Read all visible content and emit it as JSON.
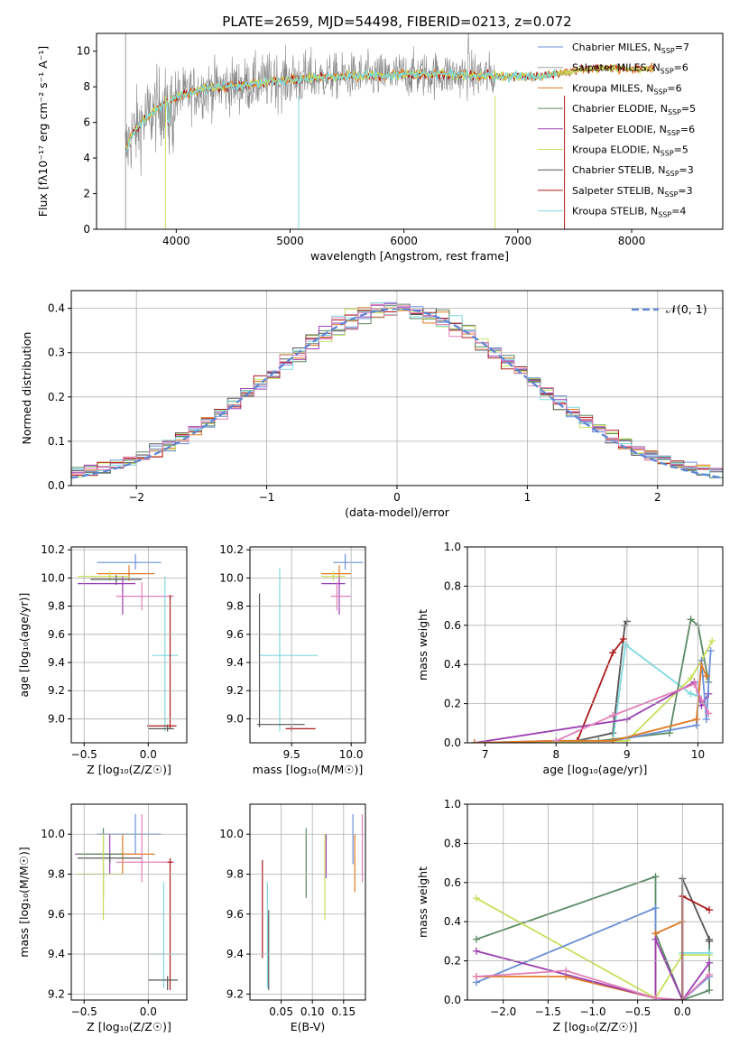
{
  "title": "PLATE=2659, MJD=54498, FIBERID=0213, z=0.072",
  "colors": {
    "chabrier_miles": "#6a8fd8",
    "salpeter_miles": "#a0a0a0",
    "kroupa_miles": "#e07b24",
    "chabrier_elodie": "#5a8a64",
    "salpeter_elodie": "#9b3fb0",
    "kroupa_elodie": "#c8e05a",
    "chabrier_stelib": "#555555",
    "salpeter_stelib": "#aa1a1a",
    "kroupa_stelib": "#7fd9df",
    "pink": "#e27fb9",
    "gauss": "#5b86d6"
  },
  "chart_data": [
    {
      "type": "line",
      "id": "spectrum",
      "xlabel": "wavelength [Angstrom, rest frame]",
      "ylabel": "Flux [fλ10⁻¹⁷ erg cm⁻² s⁻¹ A⁻¹]",
      "xlim": [
        3300,
        8800
      ],
      "ylim": [
        0,
        11
      ],
      "xticks": [
        "4000",
        "5000",
        "6000",
        "7000",
        "8000"
      ],
      "yticks": [
        "0",
        "2",
        "4",
        "6",
        "8",
        "10"
      ],
      "legend_position": "top-right",
      "legend": [
        {
          "label": "Chabrier MILES, N",
          "sub": "SSP",
          "tail": "=7"
        },
        {
          "label": "Salpeter MILES, N",
          "sub": "SSP",
          "tail": "=6"
        },
        {
          "label": "Kroupa MILES, N",
          "sub": "SSP",
          "tail": "=6"
        },
        {
          "label": "Chabrier ELODIE, N",
          "sub": "SSP",
          "tail": "=5"
        },
        {
          "label": "Salpeter ELODIE, N",
          "sub": "SSP",
          "tail": "=6"
        },
        {
          "label": "Kroupa ELODIE, N",
          "sub": "SSP",
          "tail": "=5"
        },
        {
          "label": "Chabrier STELIB, N",
          "sub": "SSP",
          "tail": "=3"
        },
        {
          "label": "Salpeter STELIB, N",
          "sub": "SSP",
          "tail": "=3"
        },
        {
          "label": "Kroupa STELIB, N",
          "sub": "SSP",
          "tail": "=4"
        }
      ],
      "continuum": {
        "x": [
          3550,
          3600,
          3700,
          3800,
          3900,
          4000,
          4200,
          4400,
          4600,
          4800,
          5000,
          5200,
          5500,
          5800,
          6000,
          6300,
          6600,
          6800,
          7000,
          7200,
          7400,
          7600,
          7800,
          8000,
          8200
        ],
        "y": [
          4.3,
          5.2,
          6.0,
          6.6,
          7.1,
          7.4,
          7.8,
          8.0,
          8.1,
          8.3,
          8.4,
          8.5,
          8.6,
          8.6,
          8.7,
          8.7,
          8.65,
          8.6,
          8.6,
          8.55,
          8.8,
          9.0,
          9.1,
          9.0,
          9.0
        ]
      }
    },
    {
      "type": "bar",
      "id": "residual-histogram",
      "xlabel": "(data-model)/error",
      "ylabel": "Normed distribution",
      "xlim": [
        -2.5,
        2.5
      ],
      "ylim": [
        0,
        0.44
      ],
      "xticks": [
        "−2",
        "−1",
        "0",
        "1",
        "2"
      ],
      "yticks": [
        "0.0",
        "0.1",
        "0.2",
        "0.3",
        "0.4"
      ],
      "legend_position": "top-right",
      "gauss_label": "𝒩(0, 1)",
      "bin_width": 0.1
    },
    {
      "type": "scatter",
      "id": "age-vs-Z",
      "xlabel": "Z [log₁₀(Z/Z☉)]",
      "ylabel": "age  [log₁₀(age/yr)]",
      "xlim": [
        -0.6,
        0.3
      ],
      "ylim": [
        8.83,
        10.22
      ],
      "xticks": [
        "−0.5",
        "0.0"
      ],
      "yticks": [
        "9.0",
        "9.2",
        "9.4",
        "9.6",
        "9.8",
        "10.0",
        "10.2"
      ],
      "points": [
        {
          "c": "chabrier_miles",
          "x": -0.1,
          "xe": [
            0.3,
            0.2
          ],
          "y": 10.11,
          "ye": [
            0.05,
            0.06
          ]
        },
        {
          "c": "kroupa_miles",
          "x": -0.15,
          "xe": [
            0.25,
            0.2
          ],
          "y": 10.03,
          "ye": [
            0.05,
            0.06
          ]
        },
        {
          "c": "kroupa_elodie",
          "x": -0.3,
          "xe": [
            0.25,
            0.15
          ],
          "y": 10.01,
          "ye": [
            0.03,
            0.04
          ]
        },
        {
          "c": "chabrier_stelib",
          "x": -0.25,
          "xe": [
            0.2,
            0.2
          ],
          "y": 9.99,
          "ye": [
            0.04,
            0.03
          ]
        },
        {
          "c": "salpeter_elodie",
          "x": -0.2,
          "xe": [
            0.35,
            0.1
          ],
          "y": 9.96,
          "ye": [
            0.22,
            0.05
          ]
        },
        {
          "c": "pink",
          "x": -0.05,
          "xe": [
            0.2,
            0.25
          ],
          "y": 9.87,
          "ye": [
            0.1,
            0.1
          ]
        },
        {
          "c": "kroupa_stelib",
          "x": 0.13,
          "xe": [
            0.1,
            0.1
          ],
          "y": 9.45,
          "ye": [
            0.54,
            0.56
          ]
        },
        {
          "c": "salpeter_stelib",
          "x": 0.17,
          "xe": [
            0.18,
            0.05
          ],
          "y": 8.95,
          "ye": [
            0.02,
            0.93
          ]
        },
        {
          "c": "chabrier_stelib",
          "x": 0.15,
          "xe": [
            0.15,
            0.05
          ],
          "y": 8.93,
          "ye": [
            0.02,
            0.03
          ]
        }
      ]
    },
    {
      "type": "scatter",
      "id": "age-vs-mass",
      "xlabel": "mass [log₁₀(M/M☉)]",
      "ylabel": "",
      "xlim": [
        9.15,
        10.12
      ],
      "ylim": [
        8.83,
        10.22
      ],
      "xticks": [
        "9.5",
        "10.0"
      ],
      "yticks": [
        "9.0",
        "9.2",
        "9.4",
        "9.6",
        "9.8",
        "10.0",
        "10.2"
      ],
      "points": [
        {
          "c": "chabrier_miles",
          "x": 9.95,
          "xe": [
            0.1,
            0.15
          ],
          "y": 10.11,
          "ye": [
            0.05,
            0.06
          ]
        },
        {
          "c": "kroupa_miles",
          "x": 9.9,
          "xe": [
            0.15,
            0.1
          ],
          "y": 10.03,
          "ye": [
            0.05,
            0.06
          ]
        },
        {
          "c": "kroupa_elodie",
          "x": 9.85,
          "xe": [
            0.1,
            0.1
          ],
          "y": 10.01,
          "ye": [
            0.03,
            0.04
          ]
        },
        {
          "c": "salpeter_elodie",
          "x": 9.9,
          "xe": [
            0.15,
            0.05
          ],
          "y": 9.96,
          "ye": [
            0.22,
            0.05
          ]
        },
        {
          "c": "pink",
          "x": 9.88,
          "xe": [
            0.05,
            0.12
          ],
          "y": 9.87,
          "ye": [
            0.1,
            0.1
          ]
        },
        {
          "c": "kroupa_stelib",
          "x": 9.4,
          "xe": [
            0.17,
            0.32
          ],
          "y": 9.45,
          "ye": [
            0.54,
            0.62
          ]
        },
        {
          "c": "chabrier_stelib",
          "x": 9.23,
          "xe": [
            0.02,
            0.38
          ],
          "y": 8.96,
          "ye": [
            0.02,
            0.93
          ]
        },
        {
          "c": "salpeter_stelib",
          "x": 9.5,
          "xe": [
            0.05,
            0.2
          ],
          "y": 8.93,
          "ye": [
            0.02,
            0.02
          ]
        }
      ]
    },
    {
      "type": "line",
      "id": "mass-weight-vs-age",
      "xlabel": "age  [log₁₀(age/yr)]",
      "ylabel": "mass weight",
      "xlim": [
        6.75,
        10.35
      ],
      "ylim": [
        0,
        1.0
      ],
      "xticks": [
        "7",
        "8",
        "9",
        "10"
      ],
      "yticks": [
        "0.0",
        "0.2",
        "0.4",
        "0.6",
        "0.8",
        "1.0"
      ],
      "series": [
        {
          "c": "chabrier_stelib",
          "x": [
            8.3,
            8.8,
            8.97,
            9.0
          ],
          "y": [
            0.01,
            0.05,
            0.6,
            0.62
          ]
        },
        {
          "c": "salpeter_stelib",
          "x": [
            8.3,
            8.8,
            8.95
          ],
          "y": [
            0.01,
            0.46,
            0.53
          ]
        },
        {
          "c": "kroupa_stelib",
          "x": [
            6.85,
            8.8,
            8.98,
            9.9,
            10.0
          ],
          "y": [
            0.0,
            0.01,
            0.5,
            0.25,
            0.24
          ]
        },
        {
          "c": "chabrier_elodie",
          "x": [
            6.85,
            8.6,
            9.6,
            9.9,
            10.0,
            10.15
          ],
          "y": [
            0.0,
            0.01,
            0.05,
            0.63,
            0.6,
            0.31
          ]
        },
        {
          "c": "kroupa_elodie",
          "x": [
            6.85,
            9.0,
            9.9,
            10.05,
            10.2
          ],
          "y": [
            0.0,
            0.01,
            0.33,
            0.42,
            0.52
          ]
        },
        {
          "c": "salpeter_elodie",
          "x": [
            6.85,
            9.0,
            9.95,
            10.05,
            10.15
          ],
          "y": [
            0.0,
            0.12,
            0.31,
            0.19,
            0.25
          ]
        },
        {
          "c": "chabrier_miles",
          "x": [
            6.85,
            8.0,
            8.8,
            9.98,
            10.05,
            10.12,
            10.18
          ],
          "y": [
            0.0,
            0.01,
            0.01,
            0.09,
            0.42,
            0.12,
            0.47
          ]
        },
        {
          "c": "kroupa_miles",
          "x": [
            6.85,
            8.0,
            8.8,
            9.98,
            10.05,
            10.12
          ],
          "y": [
            0.0,
            0.01,
            0.01,
            0.12,
            0.4,
            0.34
          ]
        },
        {
          "c": "pink",
          "x": [
            8.0,
            8.8,
            9.95,
            10.05,
            10.15
          ],
          "y": [
            0.01,
            0.14,
            0.3,
            0.22,
            0.15
          ]
        }
      ]
    },
    {
      "type": "scatter",
      "id": "mass-vs-Z",
      "xlabel": "Z [log₁₀(Z/Z☉)]",
      "ylabel": "mass [log₁₀(M/M☉)]",
      "xlim": [
        -0.6,
        0.3
      ],
      "ylim": [
        9.17,
        10.15
      ],
      "xticks": [
        "−0.5",
        "0.0"
      ],
      "yticks": [
        "9.2",
        "9.4",
        "9.6",
        "9.8",
        "10.0"
      ],
      "points": [
        {
          "c": "chabrier_miles",
          "x": -0.1,
          "xe": [
            0.3,
            0.2
          ],
          "y": 10.0,
          "ye": [
            0.1,
            0.1
          ]
        },
        {
          "c": "salpeter_elodie",
          "x": -0.3,
          "xe": [
            0.27,
            0.2
          ],
          "y": 9.9,
          "ye": [
            0.1,
            0.1
          ]
        },
        {
          "c": "kroupa_miles",
          "x": -0.2,
          "xe": [
            0.2,
            0.25
          ],
          "y": 9.9,
          "ye": [
            0.1,
            0.1
          ]
        },
        {
          "c": "chabrier_elodie",
          "x": -0.35,
          "xe": [
            0.2,
            0.15
          ],
          "y": 9.9,
          "ye": [
            0.22,
            0.13
          ]
        },
        {
          "c": "chabrier_stelib",
          "x": -0.3,
          "xe": [
            0.25,
            0.25
          ],
          "y": 9.88,
          "ye": [
            0.02,
            0.02
          ]
        },
        {
          "c": "pink",
          "x": -0.05,
          "xe": [
            0.2,
            0.25
          ],
          "y": 9.86,
          "ye": [
            0.1,
            0.24
          ]
        },
        {
          "c": "kroupa_elodie",
          "x": -0.35,
          "xe": [
            0.2,
            0.15
          ],
          "y": 9.8,
          "ye": [
            0.23,
            0.2
          ]
        },
        {
          "c": "salpeter_stelib",
          "x": 0.17,
          "xe": [
            0.02,
            0.02
          ],
          "y": 9.86,
          "ye": [
            0.64,
            0.02
          ]
        },
        {
          "c": "kroupa_stelib",
          "x": 0.12,
          "xe": [
            0.12,
            0.13
          ],
          "y": 9.4,
          "ye": [
            0.17,
            0.36
          ]
        },
        {
          "c": "chabrier_stelib",
          "x": 0.15,
          "xe": [
            0.15,
            0.08
          ],
          "y": 9.27,
          "ye": [
            0.05,
            0.02
          ]
        }
      ]
    },
    {
      "type": "scatter",
      "id": "mass-vs-ebv",
      "xlabel": "E(B-V)",
      "ylabel": "",
      "xlim": [
        0.0,
        0.185
      ],
      "ylim": [
        9.17,
        10.15
      ],
      "xticks": [
        "0.05",
        "0.10",
        "0.15"
      ],
      "yticks": [
        "9.2",
        "9.4",
        "9.6",
        "9.8",
        "10.0"
      ],
      "points": [
        {
          "c": "salpeter_stelib",
          "x": 0.02,
          "y": 9.62,
          "ye": [
            0.24,
            0.25
          ]
        },
        {
          "c": "kroupa_stelib",
          "x": 0.028,
          "y": 9.4,
          "ye": [
            0.17,
            0.36
          ]
        },
        {
          "c": "chabrier_stelib",
          "x": 0.03,
          "y": 9.22,
          "ye": [
            0.0,
            0.4
          ]
        },
        {
          "c": "chabrier_elodie",
          "x": 0.09,
          "y": 9.85,
          "ye": [
            0.17,
            0.18
          ]
        },
        {
          "c": "kroupa_elodie",
          "x": 0.12,
          "y": 9.8,
          "ye": [
            0.23,
            0.2
          ]
        },
        {
          "c": "salpeter_elodie",
          "x": 0.122,
          "y": 9.88,
          "ye": [
            0.1,
            0.12
          ]
        },
        {
          "c": "chabrier_miles",
          "x": 0.165,
          "y": 9.95,
          "ye": [
            0.1,
            0.15
          ]
        },
        {
          "c": "kroupa_miles",
          "x": 0.168,
          "y": 9.9,
          "ye": [
            0.19,
            0.1
          ]
        },
        {
          "c": "pink",
          "x": 0.18,
          "y": 9.93,
          "ye": [
            0.17,
            0.17
          ]
        }
      ]
    },
    {
      "type": "line",
      "id": "mass-weight-vs-Z",
      "xlabel": "Z [log₁₀(Z/Z☉)]",
      "ylabel": "mass weight",
      "xlim": [
        -2.4,
        0.45
      ],
      "ylim": [
        0,
        1.0
      ],
      "xticks": [
        "−2.0",
        "−1.5",
        "−1.0",
        "−0.5",
        "0.0"
      ],
      "yticks": [
        "0.0",
        "0.2",
        "0.4",
        "0.6",
        "0.8",
        "1.0"
      ],
      "series": [
        {
          "c": "chabrier_elodie",
          "x": [
            -2.3,
            -0.3,
            -0.3,
            0.0,
            0.3,
            0.3
          ],
          "y": [
            0.31,
            0.63,
            0.34,
            0.0,
            0.05,
            0.3
          ]
        },
        {
          "c": "kroupa_elodie",
          "x": [
            -2.3,
            -0.3,
            0.0,
            0.3
          ],
          "y": [
            0.52,
            0.01,
            0.23,
            0.23
          ]
        },
        {
          "c": "chabrier_miles",
          "x": [
            -2.3,
            -0.3,
            -0.3,
            0.0,
            0.3
          ],
          "y": [
            0.09,
            0.47,
            0.01,
            0.0,
            0.12
          ]
        },
        {
          "c": "kroupa_miles",
          "x": [
            -2.3,
            -1.3,
            -0.3,
            -0.3,
            0.0
          ],
          "y": [
            0.12,
            0.12,
            0.01,
            0.34,
            0.4
          ]
        },
        {
          "c": "salpeter_elodie",
          "x": [
            -2.3,
            -0.3,
            -0.3,
            0.0,
            0.3
          ],
          "y": [
            0.25,
            0.01,
            0.31,
            0.0,
            0.19
          ]
        },
        {
          "c": "pink",
          "x": [
            -2.3,
            -1.3,
            -0.3,
            0.0,
            0.3
          ],
          "y": [
            0.12,
            0.15,
            0.01,
            0.0,
            0.13
          ]
        },
        {
          "c": "kroupa_stelib",
          "x": [
            0.0,
            0.0,
            0.3
          ],
          "y": [
            0.0,
            0.24,
            0.24
          ]
        },
        {
          "c": "chabrier_stelib",
          "x": [
            0.0,
            0.0,
            0.3,
            0.3
          ],
          "y": [
            0.0,
            0.62,
            0.31,
            0.3
          ]
        },
        {
          "c": "salpeter_stelib",
          "x": [
            0.0,
            0.0,
            0.3
          ],
          "y": [
            0.0,
            0.53,
            0.46
          ]
        }
      ]
    }
  ]
}
